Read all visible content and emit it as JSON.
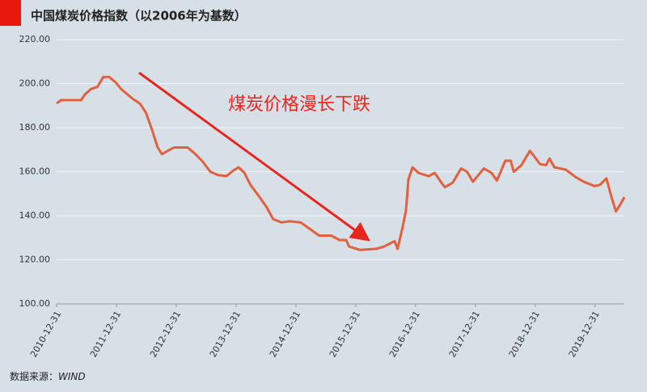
{
  "chart_data": {
    "type": "line",
    "title": "中国煤炭价格指数（以2006年为基数）",
    "annotation": "煤炭价格漫长下跌",
    "source_label": "数据来源：",
    "source": "WIND",
    "x": [
      2011.0,
      2011.07,
      2011.41,
      2011.47,
      2011.57,
      2011.68,
      2011.78,
      2011.88,
      2011.99,
      2012.08,
      2012.19,
      2012.28,
      2012.39,
      2012.49,
      2012.59,
      2012.69,
      2012.76,
      2012.86,
      2012.96,
      2013.19,
      2013.3,
      2013.43,
      2013.57,
      2013.7,
      2013.84,
      2013.95,
      2014.04,
      2014.14,
      2014.24,
      2014.38,
      2014.51,
      2014.62,
      2014.76,
      2014.89,
      2015.08,
      2015.26,
      2015.39,
      2015.59,
      2015.73,
      2015.84,
      2015.89,
      2016.07,
      2016.34,
      2016.47,
      2016.65,
      2016.7,
      2016.78,
      2016.84,
      2016.88,
      2016.95,
      2017.05,
      2017.22,
      2017.32,
      2017.42,
      2017.49,
      2017.62,
      2017.76,
      2017.86,
      2017.96,
      2018.14,
      2018.27,
      2018.36,
      2018.5,
      2018.59,
      2018.64,
      2018.77,
      2018.91,
      2018.97,
      2019.08,
      2019.18,
      2019.24,
      2019.32,
      2019.51,
      2019.68,
      2019.81,
      2019.99,
      2020.08,
      2020.19,
      2020.27,
      2020.35,
      2020.43,
      2020.49
    ],
    "series": [
      {
        "name": "中国煤炭价格指数",
        "color": "#e2603e",
        "values": [
          191,
          192.5,
          192.5,
          195,
          197.5,
          198.5,
          203,
          203,
          200.5,
          197.5,
          195,
          193,
          191,
          187,
          179.5,
          171,
          168,
          169.5,
          171,
          171,
          168.5,
          165,
          160,
          158.5,
          158,
          160.5,
          162,
          159.5,
          154,
          149,
          144,
          138.5,
          137,
          137.5,
          137,
          133.5,
          131,
          131,
          129,
          129,
          126,
          124.5,
          125,
          126,
          128.5,
          125,
          134.5,
          142.5,
          156.5,
          162,
          159.5,
          158,
          159.5,
          155.5,
          153,
          155,
          161.5,
          160,
          155.5,
          161.5,
          159.5,
          156,
          165,
          165,
          160,
          163,
          169.5,
          167.5,
          163.5,
          163,
          166,
          162,
          161,
          157.5,
          155.5,
          153.5,
          154,
          157,
          149,
          142,
          145.5,
          148.5
        ]
      }
    ],
    "xlim": [
      2011.0,
      2020.49
    ],
    "xticks": [
      {
        "value": 2011,
        "label": "2010-12-31"
      },
      {
        "value": 2012,
        "label": "2011-12-31"
      },
      {
        "value": 2013,
        "label": "2012-12-31"
      },
      {
        "value": 2014,
        "label": "2013-12-31"
      },
      {
        "value": 2015,
        "label": "2014-12-31"
      },
      {
        "value": 2016,
        "label": "2015-12-31"
      },
      {
        "value": 2017,
        "label": "2016-12-31"
      },
      {
        "value": 2018,
        "label": "2017-12-31"
      },
      {
        "value": 2019,
        "label": "2018-12-31"
      },
      {
        "value": 2020,
        "label": "2019-12-31"
      }
    ],
    "ylim": [
      100,
      220
    ],
    "yticks": [
      {
        "value": 100,
        "label": "100.00"
      },
      {
        "value": 120,
        "label": "120.00"
      },
      {
        "value": 140,
        "label": "140.00"
      },
      {
        "value": 160,
        "label": "160.00"
      },
      {
        "value": 180,
        "label": "180.00"
      },
      {
        "value": 200,
        "label": "200.00"
      },
      {
        "value": 220,
        "label": "220.00"
      }
    ],
    "grid": true
  }
}
